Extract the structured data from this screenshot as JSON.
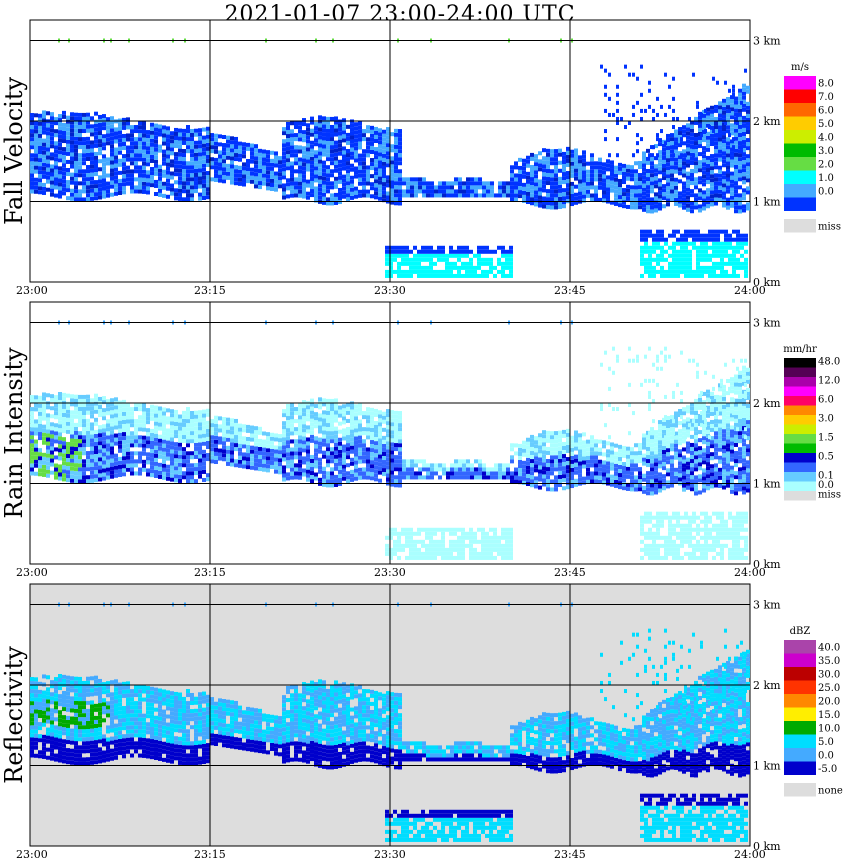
{
  "title": "2021-01-07   23:00-24:00 UTC",
  "x_ticks": [
    "23:00",
    "23:15",
    "23:30",
    "23:45",
    "24:00"
  ],
  "y_ticks": [
    "0 km",
    "1 km",
    "2 km",
    "3 km"
  ],
  "panels": [
    {
      "key": "fall_velocity",
      "label": "Fall Velocity",
      "background": "#ffffff",
      "legend_unit": "m/s",
      "legend": [
        {
          "label": "8.0",
          "color": "#ff00ff"
        },
        {
          "label": "7.0",
          "color": "#ff0000"
        },
        {
          "label": "6.0",
          "color": "#ff6600"
        },
        {
          "label": "5.0",
          "color": "#ffcc00"
        },
        {
          "label": "4.0",
          "color": "#ccee00"
        },
        {
          "label": "3.0",
          "color": "#00bb00"
        },
        {
          "label": "2.0",
          "color": "#66dd44"
        },
        {
          "label": "1.0",
          "color": "#00ffff"
        },
        {
          "label": "0.0",
          "color": "#44aaff"
        },
        {
          "label": "",
          "color": "#0033ff"
        },
        {
          "label": "miss",
          "color": "#dddddd",
          "gap": true
        }
      ]
    },
    {
      "key": "rain_intensity",
      "label": "Rain Intensity",
      "background": "#ffffff",
      "legend_unit": "mm/hr",
      "legend": [
        {
          "label": "48.0",
          "color": "#000000"
        },
        {
          "label": "",
          "color": "#550055"
        },
        {
          "label": "12.0",
          "color": "#aa00aa"
        },
        {
          "label": "",
          "color": "#ff00ff"
        },
        {
          "label": "6.0",
          "color": "#ff0066"
        },
        {
          "label": "",
          "color": "#ff8800"
        },
        {
          "label": "3.0",
          "color": "#ffcc00"
        },
        {
          "label": "",
          "color": "#ccee00"
        },
        {
          "label": "1.5",
          "color": "#66dd44"
        },
        {
          "label": "",
          "color": "#00bb00"
        },
        {
          "label": "0.5",
          "color": "#0000cc"
        },
        {
          "label": "",
          "color": "#3366ff"
        },
        {
          "label": "0.1",
          "color": "#66ccff"
        },
        {
          "label": "0.0",
          "color": "#aaffff"
        },
        {
          "label": "miss",
          "color": "#dddddd"
        }
      ]
    },
    {
      "key": "reflectivity",
      "label": "Reflectivity",
      "background": "#dddddd",
      "legend_unit": "dBZ",
      "legend": [
        {
          "label": "40.0",
          "color": "#aa44aa"
        },
        {
          "label": "35.0",
          "color": "#cc00cc"
        },
        {
          "label": "30.0",
          "color": "#bb0000"
        },
        {
          "label": "25.0",
          "color": "#ff3300"
        },
        {
          "label": "20.0",
          "color": "#ff8800"
        },
        {
          "label": "15.0",
          "color": "#ffee00"
        },
        {
          "label": "10.0",
          "color": "#00aa00"
        },
        {
          "label": "5.0",
          "color": "#00ddff"
        },
        {
          "label": "0.0",
          "color": "#44aaff"
        },
        {
          "label": "-5.0",
          "color": "#0000cc"
        },
        {
          "label": "none",
          "color": "#dddddd",
          "gap": true
        }
      ]
    }
  ],
  "chart_data": {
    "type": "heatmap",
    "title": "2021-01-07   23:00-24:00 UTC",
    "xlabel": "",
    "ylabel": "",
    "x_range": [
      "23:00",
      "24:00"
    ],
    "y_range_km": [
      0,
      3.2
    ],
    "panels": [
      "Fall Velocity",
      "Rain Intensity",
      "Reflectivity"
    ],
    "grid": true
  }
}
